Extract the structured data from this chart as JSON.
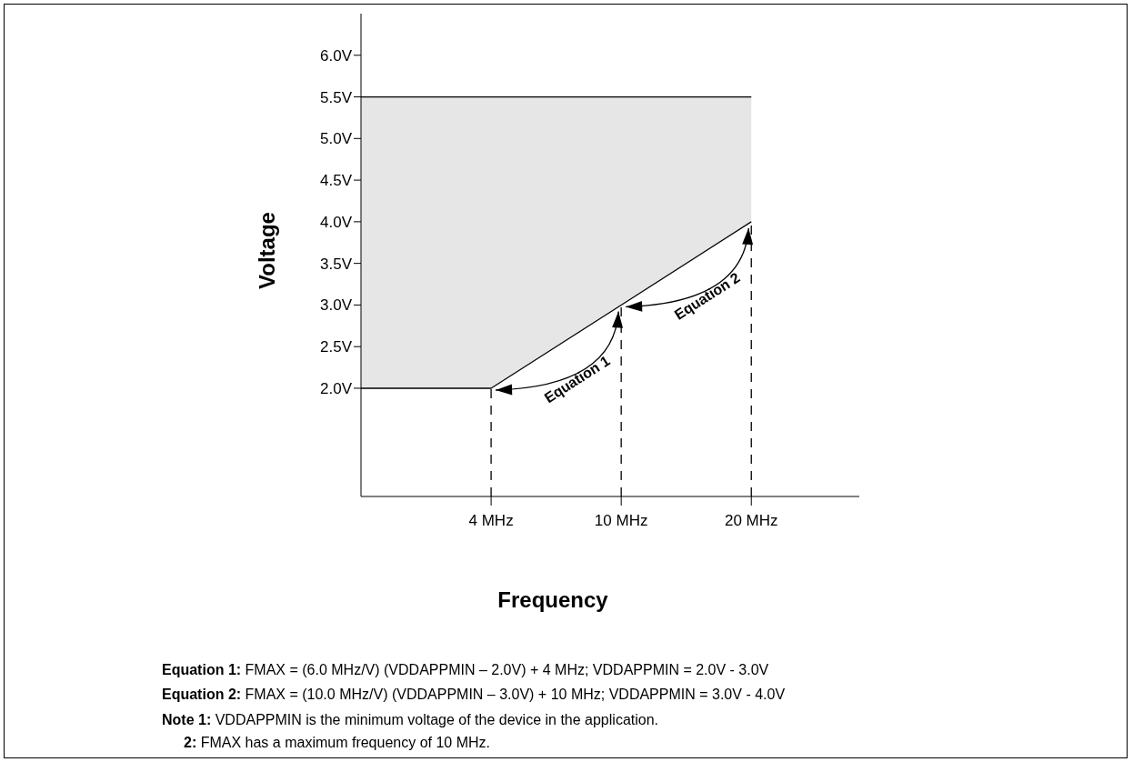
{
  "chart_data": {
    "type": "line",
    "xlabel": "Frequency",
    "ylabel": "Voltage",
    "categories": [
      null,
      "4 MHz",
      "10 MHz",
      "20 MHz"
    ],
    "series": [
      {
        "color": "#000000",
        "values": [
          2.0,
          2.0,
          3.0,
          4.0
        ],
        "lower": [
          2.0,
          2.0,
          3.0,
          4.0
        ],
        "upper": [
          5.5,
          5.5,
          5.5,
          5.5
        ]
      },
      {
        "color": "#000000",
        "values": [
          5.5,
          5.5,
          5.5,
          5.5
        ]
      }
    ],
    "ylim": [
      0.7,
      6.5
    ],
    "yticks": [
      {
        "value": 2.0,
        "label": "2.0V"
      },
      {
        "value": 2.5,
        "label": "2.5V"
      },
      {
        "value": 3.0,
        "label": "3.0V"
      },
      {
        "value": 3.5,
        "label": "3.5V"
      },
      {
        "value": 4.0,
        "label": "4.0V"
      },
      {
        "value": 4.5,
        "label": "4.5V"
      },
      {
        "value": 5.0,
        "label": "5.0V"
      },
      {
        "value": 5.5,
        "label": "5.5V"
      },
      {
        "value": 6.0,
        "label": "6.0V"
      }
    ],
    "ref_lines": [
      {
        "axis": "x",
        "value": "4 MHz",
        "line_style": "dashed"
      },
      {
        "axis": "x",
        "value": "10 MHz",
        "line_style": "dashed"
      },
      {
        "axis": "x",
        "value": "20 MHz",
        "line_style": "dashed"
      }
    ],
    "grid": false,
    "legend": false,
    "annotations": [
      "Equation 1",
      "Equation 2",
      "Equation 1: FMAX = (6.0 MHz/V) (VDDAPPMIN – 2.0V) + 4 MHz; VDDAPPMIN = 2.0V - 3.0V",
      "Equation 2: FMAX = (10.0 MHz/V) (VDDAPPMIN – 3.0V) + 10 MHz; VDDAPPMIN = 3.0V - 4.0V",
      "Note 1: VDDAPPMIN is the minimum voltage of the device in the application.",
      "2: FMAX has a maximum frequency of 10 MHz."
    ]
  }
}
